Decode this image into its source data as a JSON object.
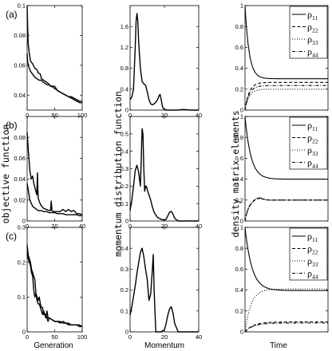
{
  "labels": {
    "col1_ylabel": "objective function",
    "col2_ylabel": "momentum distribution function",
    "col3_ylabel": "density matrix elements",
    "col1_xlabel": "Generation",
    "col2_xlabel": "Momentum",
    "col3_xlabel": "Time",
    "row_labels": [
      "(a)",
      "(b)",
      "(c)"
    ]
  },
  "chart_data": [
    {
      "type": "line",
      "row": 0,
      "col": 0,
      "panel_label": "(a)",
      "xlim": [
        0,
        100
      ],
      "ylim": [
        0.03,
        0.1
      ],
      "xticks": [
        0,
        50,
        100
      ],
      "yticks": [
        0.04,
        0.06,
        0.08,
        0.1
      ],
      "xtick_labels": [
        "0",
        "50",
        "100"
      ],
      "ytick_labels": [
        "0.04",
        "0.06",
        "0.08",
        "0.1"
      ],
      "series": [
        {
          "style": "solid",
          "x": [
            0,
            1,
            2,
            4,
            6,
            10,
            14,
            18,
            20,
            24,
            26,
            30,
            34,
            38,
            42,
            46,
            50,
            55,
            60,
            65,
            70,
            75,
            80,
            85,
            90,
            95,
            100
          ],
          "y": [
            0.1,
            0.085,
            0.074,
            0.068,
            0.063,
            0.061,
            0.058,
            0.057,
            0.055,
            0.054,
            0.051,
            0.05,
            0.049,
            0.048,
            0.046,
            0.046,
            0.046,
            0.043,
            0.042,
            0.041,
            0.04,
            0.039,
            0.039,
            0.038,
            0.037,
            0.036,
            0.036
          ]
        },
        {
          "style": "solid",
          "x": [
            0,
            1,
            3,
            6,
            10,
            12,
            14,
            18,
            22,
            26,
            28,
            32,
            36,
            40,
            44,
            48,
            52,
            56,
            60,
            65,
            70,
            75,
            80,
            85,
            90,
            95,
            100
          ],
          "y": [
            0.068,
            0.062,
            0.059,
            0.056,
            0.054,
            0.053,
            0.052,
            0.051,
            0.05,
            0.05,
            0.049,
            0.048,
            0.047,
            0.047,
            0.046,
            0.045,
            0.044,
            0.043,
            0.042,
            0.041,
            0.04,
            0.039,
            0.038,
            0.037,
            0.036,
            0.035,
            0.035
          ]
        }
      ]
    },
    {
      "type": "line",
      "row": 0,
      "col": 1,
      "xlim": [
        0,
        40
      ],
      "ylim": [
        0,
        2
      ],
      "xticks": [
        0,
        20,
        40
      ],
      "yticks": [
        0,
        0.4,
        0.8,
        1.2,
        1.6
      ],
      "xtick_labels": [
        "0",
        "20",
        "40"
      ],
      "ytick_labels": [
        "0",
        "0.4",
        "0.8",
        "1.2",
        "1.6"
      ],
      "series": [
        {
          "style": "solid",
          "x": [
            0,
            1,
            2,
            3,
            3.5,
            4,
            4.5,
            5,
            6,
            7,
            8,
            9,
            10,
            11,
            12,
            13,
            14,
            15,
            16,
            17,
            17.5,
            18,
            19,
            20,
            22,
            25,
            28,
            30,
            32,
            35,
            40
          ],
          "y": [
            0.2,
            0.25,
            0.4,
            1.2,
            1.7,
            1.85,
            1.7,
            1.3,
            0.8,
            0.55,
            0.5,
            0.48,
            0.35,
            0.2,
            0.12,
            0.1,
            0.12,
            0.15,
            0.2,
            0.28,
            0.3,
            0.22,
            0.05,
            0.01,
            0,
            0,
            0,
            0.01,
            0.01,
            0,
            0
          ]
        }
      ]
    },
    {
      "type": "line",
      "row": 0,
      "col": 2,
      "xlim": [
        0,
        1
      ],
      "ylim": [
        0,
        1
      ],
      "yticks": [
        0,
        0.2,
        0.4,
        0.6,
        0.8,
        1
      ],
      "ytick_labels": [
        "0",
        "0.2",
        "0.4",
        "0.6",
        "0.8",
        "1"
      ],
      "legend": [
        "ρ11",
        "ρ22",
        "ρ33",
        "ρ44"
      ],
      "legend_position": "top-right",
      "series": [
        {
          "name": "ρ11",
          "style": "solid",
          "start": 1.0,
          "end": 0.3,
          "rate": 20
        },
        {
          "name": "ρ22",
          "style": "dashed",
          "start": 0.0,
          "end": 0.265,
          "rate": 20
        },
        {
          "name": "ρ33",
          "style": "dotted",
          "start": 0.0,
          "end": 0.2,
          "rate": 20
        },
        {
          "name": "ρ44",
          "style": "dashdot",
          "start": 0.0,
          "end": 0.235,
          "rate": 20
        }
      ]
    },
    {
      "type": "line",
      "row": 1,
      "col": 0,
      "panel_label": "(b)",
      "xlim": [
        0,
        40
      ],
      "ylim": [
        0,
        0.1
      ],
      "xticks": [
        0,
        20,
        40
      ],
      "yticks": [
        0,
        0.02,
        0.04,
        0.06,
        0.08
      ],
      "xtick_labels": [
        "0",
        "20",
        "40"
      ],
      "ytick_labels": [
        "0",
        "0.02",
        "0.04",
        "0.06",
        "0.08"
      ],
      "series": [
        {
          "style": "solid",
          "x": [
            0,
            1,
            2,
            3,
            4,
            5,
            6,
            7,
            7.5,
            8,
            9,
            10,
            12,
            14,
            16,
            17,
            17.5,
            18,
            19,
            20,
            22,
            24,
            26,
            28,
            30,
            32,
            34,
            36,
            38,
            40
          ],
          "y": [
            0.085,
            0.065,
            0.048,
            0.04,
            0.043,
            0.035,
            0.03,
            0.025,
            0.046,
            0.022,
            0.018,
            0.015,
            0.012,
            0.011,
            0.01,
            0.01,
            0.019,
            0.01,
            0.009,
            0.009,
            0.009,
            0.009,
            0.011,
            0.009,
            0.011,
            0.009,
            0.01,
            0.007,
            0.007,
            0.006
          ]
        },
        {
          "style": "solid",
          "x": [
            0,
            2,
            4,
            6,
            8,
            10,
            12,
            14,
            16,
            18,
            20,
            22,
            24,
            26,
            28,
            30,
            32,
            34,
            36,
            38,
            40
          ],
          "y": [
            0.036,
            0.02,
            0.014,
            0.012,
            0.01,
            0.01,
            0.009,
            0.009,
            0.008,
            0.008,
            0.008,
            0.007,
            0.007,
            0.007,
            0.006,
            0.006,
            0.006,
            0.006,
            0.006,
            0.005,
            0.005
          ]
        }
      ]
    },
    {
      "type": "line",
      "row": 1,
      "col": 1,
      "xlim": [
        0,
        40
      ],
      "ylim": [
        0,
        0.6
      ],
      "xticks": [
        0,
        20,
        40
      ],
      "yticks": [
        0,
        0.1,
        0.2,
        0.3,
        0.4,
        0.5
      ],
      "xtick_labels": [
        "0",
        "20",
        "40"
      ],
      "ytick_labels": [
        "0",
        "0.1",
        "0.2",
        "0.3",
        "0.4",
        "0.5"
      ],
      "series": [
        {
          "style": "solid",
          "x": [
            0,
            1,
            2,
            3,
            4,
            5,
            6,
            6.5,
            7,
            7.5,
            8,
            8.5,
            9,
            9.5,
            10,
            11,
            12,
            13,
            14,
            16,
            18,
            20,
            21,
            22,
            23,
            24,
            25,
            26,
            28,
            30,
            35,
            40
          ],
          "y": [
            0.06,
            0.12,
            0.2,
            0.29,
            0.32,
            0.28,
            0.2,
            0.35,
            0.53,
            0.5,
            0.3,
            0.17,
            0.2,
            0.2,
            0.18,
            0.15,
            0.12,
            0.08,
            0.05,
            0.02,
            0.01,
            0.005,
            0.01,
            0.03,
            0.05,
            0.055,
            0.04,
            0.015,
            0,
            0,
            0,
            0
          ]
        }
      ]
    },
    {
      "type": "line",
      "row": 1,
      "col": 2,
      "xlim": [
        0,
        1
      ],
      "ylim": [
        0,
        1
      ],
      "yticks": [
        0,
        0.2,
        0.4,
        0.6,
        0.8,
        1
      ],
      "ytick_labels": [
        "0",
        "0.2",
        "0.4",
        "0.6",
        "0.8",
        "1"
      ],
      "legend": [
        "ρ11",
        "ρ22",
        "ρ33",
        "ρ44"
      ],
      "legend_position": "top-right",
      "series": [
        {
          "name": "ρ11",
          "style": "solid",
          "start": 1.0,
          "end": 0.4,
          "rate": 14
        },
        {
          "name": "ρ22",
          "style": "dashed",
          "start": 0.0,
          "end": 0.2,
          "rate": 22,
          "overshoot": 0.02
        },
        {
          "name": "ρ33",
          "style": "dotted",
          "start": 0.0,
          "end": 0.2,
          "rate": 22,
          "overshoot": 0.03
        },
        {
          "name": "ρ44",
          "style": "dashdot",
          "start": 0.0,
          "end": 0.2,
          "rate": 22,
          "overshoot": 0.025
        }
      ]
    },
    {
      "type": "line",
      "row": 2,
      "col": 0,
      "panel_label": "(c)",
      "xlim": [
        0,
        100
      ],
      "ylim": [
        0,
        0.3
      ],
      "xticks": [
        0,
        50,
        100
      ],
      "yticks": [
        0,
        0.1,
        0.2,
        0.3
      ],
      "xtick_labels": [
        "0",
        "50",
        "100"
      ],
      "ytick_labels": [
        "0",
        "0.1",
        "0.2",
        "0.3"
      ],
      "series": [
        {
          "style": "solid",
          "x": [
            0,
            2,
            4,
            6,
            8,
            10,
            12,
            14,
            16,
            18,
            20,
            22,
            24,
            26,
            28,
            30,
            32,
            34,
            36,
            38,
            40,
            45,
            50,
            55,
            60,
            65,
            70,
            75,
            80,
            85,
            90,
            95,
            100
          ],
          "y": [
            0.25,
            0.22,
            0.21,
            0.2,
            0.18,
            0.17,
            0.16,
            0.15,
            0.11,
            0.1,
            0.09,
            0.1,
            0.08,
            0.07,
            0.07,
            0.05,
            0.05,
            0.04,
            0.06,
            0.04,
            0.04,
            0.035,
            0.03,
            0.03,
            0.03,
            0.025,
            0.025,
            0.025,
            0.02,
            0.02,
            0.02,
            0.02,
            0.015
          ]
        },
        {
          "style": "solid",
          "x": [
            0,
            2,
            4,
            6,
            8,
            10,
            12,
            14,
            16,
            18,
            20,
            22,
            24,
            26,
            28,
            30,
            32,
            34,
            36,
            38,
            40,
            45,
            50,
            55,
            60,
            65,
            70,
            75,
            80,
            85,
            90,
            95,
            100
          ],
          "y": [
            0.23,
            0.21,
            0.2,
            0.19,
            0.17,
            0.16,
            0.12,
            0.1,
            0.11,
            0.09,
            0.08,
            0.08,
            0.07,
            0.06,
            0.05,
            0.06,
            0.05,
            0.05,
            0.04,
            0.03,
            0.04,
            0.035,
            0.03,
            0.03,
            0.025,
            0.03,
            0.025,
            0.02,
            0.02,
            0.02,
            0.02,
            0.015,
            0.015
          ]
        }
      ]
    },
    {
      "type": "line",
      "row": 2,
      "col": 1,
      "xlim": [
        0,
        40
      ],
      "ylim": [
        0,
        0.5
      ],
      "xticks": [
        0,
        20,
        40
      ],
      "yticks": [
        0,
        0.1,
        0.2,
        0.3,
        0.4
      ],
      "xtick_labels": [
        "0",
        "20",
        "40"
      ],
      "ytick_labels": [
        "0",
        "0.1",
        "0.2",
        "0.3",
        "0.4"
      ],
      "series": [
        {
          "style": "solid",
          "x": [
            0,
            1,
            2,
            3,
            4,
            5,
            6,
            7,
            8,
            9,
            10,
            11,
            12,
            13,
            13.5,
            14,
            15,
            16,
            18,
            20,
            21,
            22,
            23,
            24,
            25,
            26,
            28,
            30,
            35,
            40
          ],
          "y": [
            0.08,
            0.12,
            0.17,
            0.22,
            0.28,
            0.33,
            0.38,
            0.4,
            0.36,
            0.3,
            0.25,
            0.15,
            0.18,
            0.3,
            0.37,
            0.2,
            0,
            0,
            0,
            0.01,
            0.04,
            0.08,
            0.11,
            0.12,
            0.09,
            0.04,
            0,
            0,
            0,
            0
          ]
        }
      ]
    },
    {
      "type": "line",
      "row": 2,
      "col": 2,
      "xlim": [
        0,
        1
      ],
      "ylim": [
        0,
        1
      ],
      "yticks": [
        0,
        0.2,
        0.4,
        0.6,
        0.8,
        1
      ],
      "ytick_labels": [
        "0",
        "0.2",
        "0.4",
        "0.6",
        "0.8",
        "1"
      ],
      "legend": [
        "ρ11",
        "ρ22",
        "ρ33",
        "ρ44"
      ],
      "legend_position": "top-right",
      "series": [
        {
          "name": "ρ11",
          "style": "solid",
          "start": 1.0,
          "end": 0.395,
          "rate": 12
        },
        {
          "name": "ρ22",
          "style": "dashed",
          "start": 0.0,
          "end": 0.095,
          "rate": 10
        },
        {
          "name": "ρ33",
          "style": "dotted",
          "start": 0.0,
          "end": 0.41,
          "rate": 14
        },
        {
          "name": "ρ44",
          "style": "dashdot",
          "start": 0.0,
          "end": 0.085,
          "rate": 10
        }
      ]
    }
  ]
}
